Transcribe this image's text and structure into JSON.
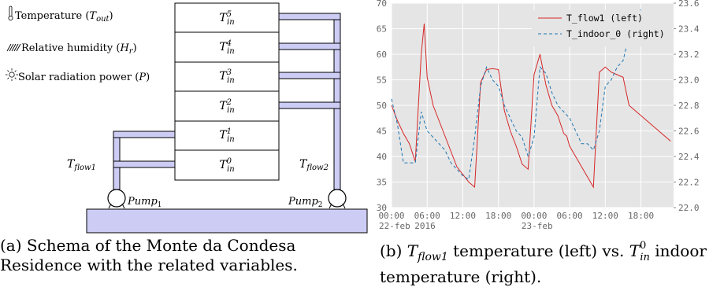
{
  "schema": {
    "legend": [
      {
        "icon": "thermometer-icon",
        "text": "Temperature",
        "symbol": "T",
        "sub": "out"
      },
      {
        "icon": "humidity-icon",
        "text": "Relative humidity",
        "symbol": "H",
        "sub": "r"
      },
      {
        "icon": "sun-icon",
        "text": "Solar radiation power",
        "symbol": "P",
        "sub": ""
      }
    ],
    "floors": [
      {
        "sym": "T",
        "sub": "in",
        "sup": "5"
      },
      {
        "sym": "T",
        "sub": "in",
        "sup": "4"
      },
      {
        "sym": "T",
        "sub": "in",
        "sup": "3"
      },
      {
        "sym": "T",
        "sub": "in",
        "sup": "2"
      },
      {
        "sym": "T",
        "sub": "in",
        "sup": "1"
      },
      {
        "sym": "T",
        "sub": "in",
        "sup": "0"
      }
    ],
    "tflow1": {
      "sym": "T",
      "sub": "flow1"
    },
    "tflow2": {
      "sym": "T",
      "sub": "flow2"
    },
    "pump1": {
      "sym": "Pump",
      "sub": "1"
    },
    "pump2": {
      "sym": "Pump",
      "sub": "2"
    }
  },
  "caption_a": "(a) Schema of the Monte da Condesa Residence with the related variables.",
  "caption_b": {
    "pre": "(b) ",
    "t1": "T",
    "t1_sub": "flow1",
    "mid": " temperature (left) vs. ",
    "t2": "T",
    "t2_sub": "in",
    "t2_sup": "0",
    "post": " indoor temperature (right)."
  },
  "chart_data": {
    "type": "line",
    "x_tick_labels": [
      "00:00\n22-feb",
      "06:00",
      "12:00",
      "18:00",
      "00:00\n23-feb",
      "06:00",
      "12:00",
      "18:00"
    ],
    "x_extra_label": "2016",
    "ylim_left": [
      30,
      70
    ],
    "left_ticks": [
      30,
      35,
      40,
      45,
      50,
      55,
      60,
      65,
      70
    ],
    "ylim_right": [
      22.0,
      23.6
    ],
    "right_ticks": [
      22.0,
      22.2,
      22.4,
      22.6,
      22.8,
      23.0,
      23.2,
      23.4,
      23.6
    ],
    "grid": true,
    "legend_position": "top-right",
    "series": [
      {
        "name": "T_flow1 (left)",
        "color": "#d62728",
        "axis": "left",
        "style": "solid",
        "x": [
          0,
          1,
          2,
          3,
          4,
          5,
          5.5,
          6,
          7,
          8,
          9,
          10,
          11,
          12,
          13,
          14,
          15,
          16,
          17,
          18,
          19,
          20,
          21,
          22,
          23,
          24,
          25,
          26,
          27,
          28,
          29,
          29.5,
          30,
          31,
          32,
          33,
          34,
          35,
          36,
          37,
          38,
          39,
          40,
          41,
          42,
          43,
          44,
          45,
          46,
          47
        ],
        "y": [
          50,
          47,
          44.5,
          42.5,
          39,
          60,
          66,
          55.5,
          50,
          47,
          44,
          41,
          38,
          36.5,
          35,
          34,
          54.5,
          57,
          57.2,
          57,
          49,
          45,
          42,
          38.5,
          37.5,
          56,
          60,
          54,
          50,
          48,
          44.5,
          44,
          42,
          40,
          38,
          36,
          34,
          56.5,
          57.5,
          56.5,
          56,
          55.5,
          50,
          49,
          48,
          47,
          46,
          45,
          44,
          43
        ]
      },
      {
        "name": "T_indoor_0 (right)",
        "color": "#1f77b4",
        "axis": "right",
        "style": "dashed",
        "x": [
          0,
          1,
          2,
          3,
          4,
          5,
          6,
          7,
          8,
          9,
          10,
          11,
          12,
          13,
          14,
          15,
          16,
          17,
          18,
          19,
          20,
          21,
          22,
          23,
          24,
          25,
          26,
          27,
          28,
          29,
          30,
          31,
          32,
          33,
          34,
          35,
          36,
          37,
          38,
          39,
          40,
          41,
          42
        ],
        "y": [
          22.85,
          22.65,
          22.35,
          22.35,
          22.35,
          22.75,
          22.6,
          22.55,
          22.5,
          22.45,
          22.35,
          22.3,
          22.25,
          22.22,
          22.55,
          22.95,
          23.1,
          23.0,
          22.95,
          22.8,
          22.7,
          22.6,
          22.55,
          22.4,
          22.55,
          23.1,
          23.05,
          22.9,
          22.8,
          22.75,
          22.7,
          22.6,
          22.5,
          22.5,
          22.45,
          22.6,
          22.95,
          23.0,
          23.1,
          23.15,
          23.35,
          23.5,
          23.55
        ]
      }
    ]
  }
}
